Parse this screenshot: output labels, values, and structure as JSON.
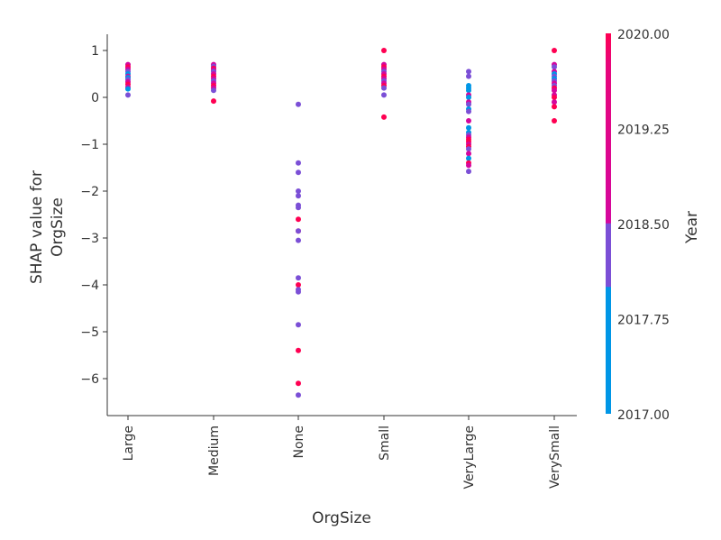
{
  "chart_data": {
    "type": "scatter",
    "title": "",
    "xlabel": "OrgSize",
    "ylabel_lines": [
      "SHAP value for",
      "OrgSize"
    ],
    "categories": [
      "Large",
      "Medium",
      "None",
      "Small",
      "VeryLarge",
      "VerySmall"
    ],
    "yticks": [
      1,
      0,
      -1,
      -2,
      -3,
      -4,
      -5,
      -6
    ],
    "ytick_labels": [
      "1",
      "0",
      "−1",
      "−2",
      "−3",
      "−4",
      "−5",
      "−6"
    ],
    "ylim": [
      -6.7,
      1.35
    ],
    "colorbar": {
      "label": "Year",
      "ticks": [
        2020.0,
        2019.25,
        2018.5,
        2017.75,
        2017.0
      ],
      "tick_labels": [
        "2020.00",
        "2019.25",
        "2018.50",
        "2017.75",
        "2017.00"
      ],
      "range": [
        2017,
        2020
      ],
      "colors": {
        "2017": "#0096e6",
        "2018": "#7b4fd6",
        "2019": "#d4079e",
        "2020": "#ff0052"
      }
    },
    "series": [
      {
        "category": "Large",
        "points": [
          [
            0.7,
            2019
          ],
          [
            0.65,
            2020
          ],
          [
            0.6,
            2019
          ],
          [
            0.55,
            2018
          ],
          [
            0.5,
            2017
          ],
          [
            0.45,
            2019
          ],
          [
            0.42,
            2017
          ],
          [
            0.38,
            2018
          ],
          [
            0.33,
            2019
          ],
          [
            0.28,
            2020
          ],
          [
            0.22,
            2019
          ],
          [
            0.18,
            2017
          ],
          [
            0.05,
            2018
          ]
        ]
      },
      {
        "category": "Medium",
        "points": [
          [
            0.7,
            2019
          ],
          [
            0.66,
            2018
          ],
          [
            0.62,
            2020
          ],
          [
            0.58,
            2019
          ],
          [
            0.55,
            2018
          ],
          [
            0.5,
            2019
          ],
          [
            0.45,
            2020
          ],
          [
            0.4,
            2019
          ],
          [
            0.35,
            2018
          ],
          [
            0.3,
            2019
          ],
          [
            0.25,
            2020
          ],
          [
            0.2,
            2019
          ],
          [
            0.15,
            2018
          ],
          [
            -0.08,
            2020
          ]
        ]
      },
      {
        "category": "None",
        "points": [
          [
            -0.15,
            2018
          ],
          [
            -1.4,
            2018
          ],
          [
            -1.6,
            2018
          ],
          [
            -2.0,
            2018
          ],
          [
            -2.1,
            2018
          ],
          [
            -2.3,
            2018
          ],
          [
            -2.35,
            2018
          ],
          [
            -2.6,
            2020
          ],
          [
            -2.85,
            2020
          ],
          [
            -2.85,
            2018
          ],
          [
            -3.05,
            2018
          ],
          [
            -3.85,
            2018
          ],
          [
            -4.0,
            2020
          ],
          [
            -4.1,
            2018
          ],
          [
            -4.15,
            2018
          ],
          [
            -4.85,
            2018
          ],
          [
            -5.4,
            2020
          ],
          [
            -6.1,
            2020
          ],
          [
            -6.35,
            2018
          ]
        ]
      },
      {
        "category": "Small",
        "points": [
          [
            1.0,
            2020
          ],
          [
            0.7,
            2019
          ],
          [
            0.65,
            2020
          ],
          [
            0.6,
            2019
          ],
          [
            0.55,
            2018
          ],
          [
            0.5,
            2019
          ],
          [
            0.45,
            2020
          ],
          [
            0.4,
            2019
          ],
          [
            0.35,
            2018
          ],
          [
            0.3,
            2019
          ],
          [
            0.25,
            2020
          ],
          [
            0.2,
            2018
          ],
          [
            0.05,
            2018
          ],
          [
            -0.42,
            2020
          ]
        ]
      },
      {
        "category": "VeryLarge",
        "points": [
          [
            0.55,
            2018
          ],
          [
            0.45,
            2018
          ],
          [
            0.25,
            2017
          ],
          [
            0.2,
            2017
          ],
          [
            0.15,
            2017
          ],
          [
            0.05,
            2019
          ],
          [
            0.0,
            2017
          ],
          [
            -0.1,
            2019
          ],
          [
            -0.15,
            2018
          ],
          [
            -0.25,
            2017
          ],
          [
            -0.3,
            2018
          ],
          [
            -0.5,
            2019
          ],
          [
            -0.65,
            2017
          ],
          [
            -0.75,
            2017
          ],
          [
            -0.8,
            2018
          ],
          [
            -0.85,
            2019
          ],
          [
            -0.9,
            2020
          ],
          [
            -0.95,
            2020
          ],
          [
            -1.0,
            2019
          ],
          [
            -1.05,
            2020
          ],
          [
            -1.1,
            2018
          ],
          [
            -1.2,
            2019
          ],
          [
            -1.3,
            2017
          ],
          [
            -1.4,
            2020
          ],
          [
            -1.45,
            2019
          ],
          [
            -1.58,
            2018
          ]
        ]
      },
      {
        "category": "VerySmall",
        "points": [
          [
            1.0,
            2020
          ],
          [
            0.7,
            2019
          ],
          [
            0.65,
            2018
          ],
          [
            0.55,
            2019
          ],
          [
            0.5,
            2017
          ],
          [
            0.45,
            2018
          ],
          [
            0.4,
            2017
          ],
          [
            0.35,
            2018
          ],
          [
            0.3,
            2019
          ],
          [
            0.25,
            2018
          ],
          [
            0.2,
            2020
          ],
          [
            0.15,
            2019
          ],
          [
            0.05,
            2019
          ],
          [
            0.0,
            2020
          ],
          [
            -0.1,
            2019
          ],
          [
            -0.2,
            2020
          ],
          [
            -0.5,
            2020
          ]
        ]
      }
    ]
  }
}
